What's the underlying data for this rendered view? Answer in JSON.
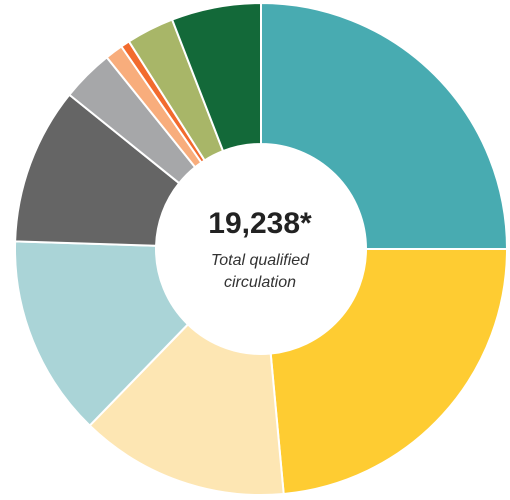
{
  "chart_data": {
    "type": "pie",
    "variant": "donut",
    "center": {
      "total": "19,238*",
      "caption": "Total qualified circulation"
    },
    "slices": [
      {
        "value": 25.5,
        "color": "#48ABB1"
      },
      {
        "value": 24.0,
        "color": "#FECC32"
      },
      {
        "value": 14.0,
        "color": "#FDE6B3"
      },
      {
        "value": 13.5,
        "color": "#AAD4D7"
      },
      {
        "value": 10.5,
        "color": "#656565"
      },
      {
        "value": 3.5,
        "color": "#A6A7A9"
      },
      {
        "value": 1.2,
        "color": "#F8AD7C"
      },
      {
        "value": 0.6,
        "color": "#F26B2E"
      },
      {
        "value": 3.2,
        "color": "#A8B668"
      },
      {
        "value": 6.0,
        "color": "#136939"
      }
    ],
    "start_angle_deg": 0,
    "direction": "clockwise",
    "separator_color": "#FFFFFF"
  }
}
